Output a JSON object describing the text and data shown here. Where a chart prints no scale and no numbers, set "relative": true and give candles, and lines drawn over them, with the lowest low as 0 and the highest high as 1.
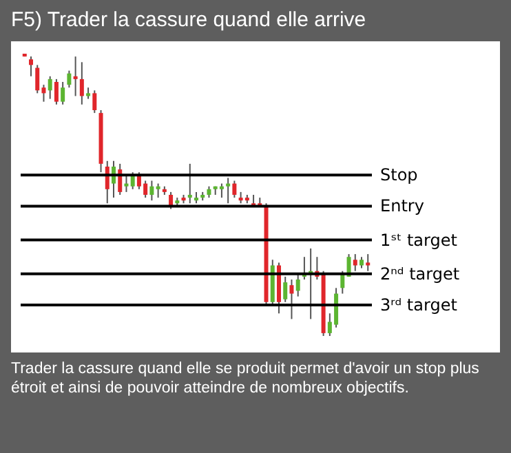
{
  "chart_data": {
    "type": "candlestick",
    "title": "F5) Trader la cassure quand elle arrive",
    "relative": true,
    "tick_labels": false,
    "categories": [
      null,
      null,
      null,
      null,
      null,
      null,
      null,
      null,
      null,
      null,
      null,
      null,
      null,
      null,
      null,
      null,
      null,
      null,
      null,
      null,
      null,
      null,
      null,
      null,
      null,
      null,
      null,
      null,
      null,
      null,
      null,
      null,
      null,
      null,
      null,
      null,
      null,
      null,
      null,
      null,
      null,
      null,
      null,
      null,
      null,
      null,
      null,
      null,
      null,
      null,
      null,
      null,
      null,
      null,
      null
    ],
    "ohlc": [
      [
        1.0,
        1.0,
        0.99,
        0.99
      ],
      [
        0.98,
        0.99,
        0.92,
        0.96
      ],
      [
        0.95,
        0.96,
        0.86,
        0.87
      ],
      [
        0.88,
        0.89,
        0.83,
        0.86
      ],
      [
        0.87,
        0.92,
        0.84,
        0.91
      ],
      [
        0.9,
        0.91,
        0.82,
        0.83
      ],
      [
        0.83,
        0.9,
        0.82,
        0.88
      ],
      [
        0.89,
        0.94,
        0.88,
        0.93
      ],
      [
        0.92,
        0.99,
        0.85,
        0.91
      ],
      [
        0.91,
        0.97,
        0.82,
        0.85
      ],
      [
        0.85,
        0.88,
        0.84,
        0.86
      ],
      [
        0.86,
        0.87,
        0.79,
        0.8
      ],
      [
        0.79,
        0.8,
        0.58,
        0.61
      ],
      [
        0.6,
        0.62,
        0.47,
        0.52
      ],
      [
        0.54,
        0.62,
        0.49,
        0.6
      ],
      [
        0.59,
        0.61,
        0.5,
        0.51
      ],
      [
        0.53,
        0.57,
        0.51,
        0.54
      ],
      [
        0.53,
        0.58,
        0.52,
        0.57
      ],
      [
        0.57,
        0.58,
        0.52,
        0.53
      ],
      [
        0.54,
        0.55,
        0.49,
        0.5
      ],
      [
        0.5,
        0.55,
        0.48,
        0.53
      ],
      [
        0.52,
        0.54,
        0.49,
        0.53
      ],
      [
        0.52,
        0.53,
        0.5,
        0.51
      ],
      [
        0.5,
        0.51,
        0.45,
        0.46
      ],
      [
        0.47,
        0.49,
        0.46,
        0.48
      ],
      [
        0.49,
        0.5,
        0.47,
        0.48
      ],
      [
        0.49,
        0.61,
        0.47,
        0.5
      ],
      [
        0.48,
        0.51,
        0.47,
        0.49
      ],
      [
        0.49,
        0.51,
        0.48,
        0.5
      ],
      [
        0.5,
        0.53,
        0.49,
        0.52
      ],
      [
        0.52,
        0.53,
        0.5,
        0.53
      ],
      [
        0.52,
        0.54,
        0.49,
        0.53
      ],
      [
        0.53,
        0.56,
        0.47,
        0.54
      ],
      [
        0.54,
        0.55,
        0.49,
        0.5
      ],
      [
        0.49,
        0.51,
        0.47,
        0.48
      ],
      [
        0.49,
        0.5,
        0.47,
        0.48
      ],
      [
        0.47,
        0.5,
        0.46,
        0.46
      ],
      [
        0.47,
        0.49,
        0.46,
        0.46
      ],
      [
        0.46,
        0.47,
        0.11,
        0.12
      ],
      [
        0.12,
        0.27,
        0.11,
        0.25
      ],
      [
        0.25,
        0.26,
        0.08,
        0.12
      ],
      [
        0.13,
        0.21,
        0.12,
        0.19
      ],
      [
        0.18,
        0.2,
        0.06,
        0.15
      ],
      [
        0.16,
        0.22,
        0.14,
        0.2
      ],
      [
        0.21,
        0.28,
        0.2,
        0.22
      ],
      [
        0.22,
        0.31,
        0.06,
        0.23
      ],
      [
        0.23,
        0.28,
        0.2,
        0.21
      ],
      [
        0.22,
        0.23,
        0,
        0.01
      ],
      [
        0.01,
        0.08,
        0,
        0.05
      ],
      [
        0.04,
        0.17,
        0.03,
        0.15
      ],
      [
        0.17,
        0.23,
        0.15,
        0.22
      ],
      [
        0.21,
        0.29,
        0.21,
        0.28
      ],
      [
        0.27,
        0.29,
        0.23,
        0.25
      ],
      [
        0.25,
        0.28,
        0.24,
        0.27
      ],
      [
        0.26,
        0.29,
        0.23,
        0.25
      ]
    ],
    "colors": [
      "#e0262b",
      "#e0262b",
      "#e0262b",
      "#e0262b",
      "#5cb531",
      "#e0262b",
      "#5cb531",
      "#5cb531",
      "#e0262b",
      "#e0262b",
      "#5cb531",
      "#e0262b",
      "#e0262b",
      "#e0262b",
      "#5cb531",
      "#e0262b",
      "#5cb531",
      "#5cb531",
      "#e0262b",
      "#e0262b",
      "#5cb531",
      "#5cb531",
      "#e0262b",
      "#e0262b",
      "#5cb531",
      "#e0262b",
      "#5cb531",
      "#5cb531",
      "#5cb531",
      "#5cb531",
      "#5cb531",
      "#5cb531",
      "#5cb531",
      "#e0262b",
      "#e0262b",
      "#e0262b",
      "#e0262b",
      "#e0262b",
      "#e0262b",
      "#5cb531",
      "#e0262b",
      "#5cb531",
      "#e0262b",
      "#5cb531",
      "#5cb531",
      "#5cb531",
      "#e0262b",
      "#e0262b",
      "#5cb531",
      "#5cb531",
      "#5cb531",
      "#5cb531",
      "#e0262b",
      "#5cb531",
      "#e0262b"
    ],
    "ref_lines": [
      {
        "axis": "y",
        "value": 0.57,
        "label": "Stop"
      },
      {
        "axis": "y",
        "value": 0.46,
        "label": "Entry"
      },
      {
        "axis": "y",
        "value": 0.34,
        "label": "1ˢᵗ target"
      },
      {
        "axis": "y",
        "value": 0.22,
        "label": "2ⁿᵈ target"
      },
      {
        "axis": "y",
        "value": 0.11,
        "label": "3ʳᵈ target"
      }
    ],
    "annotations": [
      "Trader la cassure quand elle se produit permet d'avoir un stop plus étroit et ainsi de pouvoir atteindre de nombreux objectifs."
    ]
  }
}
